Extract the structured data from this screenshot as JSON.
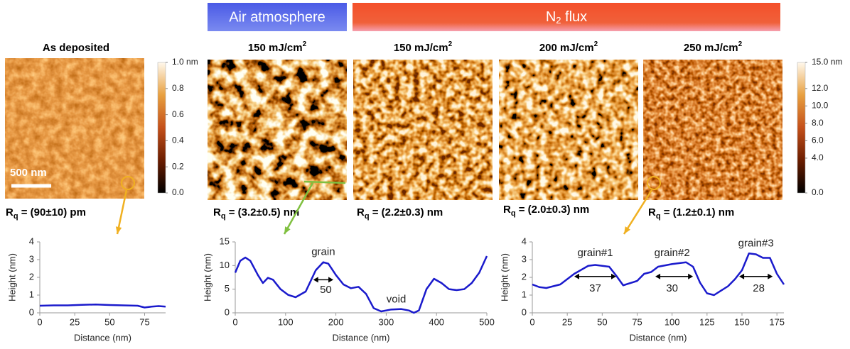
{
  "header": {
    "air": "Air atmosphere",
    "n2": {
      "main": "N",
      "sub": "2",
      "rest": " flux"
    }
  },
  "panels": [
    {
      "title": {
        "text": "As deposited"
      },
      "rq": {
        "main": "R",
        "sub": "q",
        "rest": " = (90±10) pm"
      }
    },
    {
      "title": {
        "text": "150 mJ/cm",
        "sup": "2"
      },
      "rq": {
        "main": "R",
        "sub": "q",
        "rest": " = (3.2±0.5) nm"
      }
    },
    {
      "title": {
        "text": "150 mJ/cm",
        "sup": "2"
      },
      "rq": {
        "main": "R",
        "sub": "q",
        "rest": " = (2.2±0.3) nm"
      }
    },
    {
      "title": {
        "text": "200 mJ/cm",
        "sup": "2"
      },
      "rq": {
        "main": "R",
        "sub": "q",
        "rest": " = (2.0±0.3) nm"
      }
    },
    {
      "title": {
        "text": "250 mJ/cm",
        "sup": "2"
      },
      "rq": {
        "main": "R",
        "sub": "q",
        "rest": " = (1.2±0.1) nm"
      }
    }
  ],
  "scale_bar": "500 nm",
  "colorbars": [
    {
      "lim": [
        0,
        1
      ],
      "ticks": [
        {
          "value": 1.0,
          "label": "1.0 nm"
        },
        0.8,
        0.6,
        0.4,
        0.2,
        {
          "value": 0,
          "label": "0.0"
        }
      ]
    },
    {
      "lim": [
        0,
        15
      ],
      "ticks": [
        {
          "value": 15,
          "label": "15.0 nm"
        },
        {
          "value": 12,
          "label": "12.0"
        },
        {
          "value": 10,
          "label": "10.0"
        },
        {
          "value": 8,
          "label": "8.0"
        },
        {
          "value": 6,
          "label": "6.0"
        },
        {
          "value": 4,
          "label": "4.0"
        },
        {
          "value": 0,
          "label": "0.0"
        }
      ]
    }
  ],
  "chart_data": [
    {
      "type": "line",
      "x_label": "Distance (nm)",
      "y_label": "Height (nm)",
      "color": "#1a1acc",
      "xlim": [
        0,
        90
      ],
      "xticks": [
        0,
        25,
        50,
        75
      ],
      "ylim": [
        0,
        4
      ],
      "yticks": [
        0,
        1,
        2,
        3,
        4
      ],
      "x": [
        0,
        10,
        20,
        30,
        40,
        50,
        60,
        70,
        75,
        80,
        85,
        90
      ],
      "values": [
        0.4,
        0.42,
        0.42,
        0.45,
        0.47,
        0.44,
        0.42,
        0.4,
        0.3,
        0.35,
        0.38,
        0.35
      ],
      "annotations": []
    },
    {
      "type": "line",
      "x_label": "Distance (nm)",
      "y_label": "Height (nm)",
      "color": "#1a1acc",
      "xlim": [
        0,
        500
      ],
      "xticks": [
        0,
        100,
        200,
        300,
        400,
        500
      ],
      "ylim": [
        0,
        15
      ],
      "yticks": [
        0,
        5,
        10,
        15
      ],
      "x": [
        0,
        10,
        20,
        30,
        45,
        55,
        65,
        75,
        90,
        105,
        120,
        140,
        160,
        175,
        185,
        200,
        215,
        230,
        245,
        260,
        275,
        290,
        310,
        330,
        345,
        355,
        365,
        380,
        395,
        410,
        425,
        440,
        455,
        470,
        485,
        500
      ],
      "values": [
        8.5,
        11,
        11.7,
        11,
        8,
        6.3,
        7.4,
        7,
        5,
        3.8,
        3.3,
        4.5,
        9,
        10.7,
        10.4,
        8,
        6,
        5.2,
        5.5,
        4,
        1,
        0.3,
        0.7,
        0.8,
        0.5,
        0,
        0.5,
        5,
        7.2,
        6.3,
        5,
        4.8,
        5,
        6.3,
        8.5,
        12
      ],
      "annotations": [
        "grain",
        "50",
        "void"
      ]
    },
    {
      "type": "line",
      "x_label": "Distance (nm)",
      "y_label": "Height (nm)",
      "color": "#1a1acc",
      "xlim": [
        0,
        180
      ],
      "xticks": [
        0,
        25,
        50,
        75,
        100,
        125,
        150,
        175
      ],
      "ylim": [
        0,
        4
      ],
      "yticks": [
        0,
        1,
        2,
        3,
        4
      ],
      "x": [
        0,
        5,
        10,
        20,
        30,
        40,
        45,
        50,
        55,
        60,
        65,
        75,
        80,
        85,
        90,
        100,
        110,
        115,
        120,
        125,
        130,
        140,
        145,
        150,
        155,
        160,
        165,
        170,
        175,
        180
      ],
      "values": [
        1.6,
        1.45,
        1.4,
        1.6,
        2.2,
        2.65,
        2.7,
        2.65,
        2.6,
        2.1,
        1.55,
        1.8,
        2.2,
        2.3,
        2.6,
        2.75,
        2.85,
        2.6,
        1.7,
        1.1,
        1.0,
        1.5,
        1.9,
        2.4,
        3.35,
        3.3,
        3.1,
        3.1,
        2.2,
        1.6
      ],
      "annotations": [
        "grain#1",
        "37",
        "grain#2",
        "30",
        "grain#3",
        "28"
      ]
    }
  ]
}
